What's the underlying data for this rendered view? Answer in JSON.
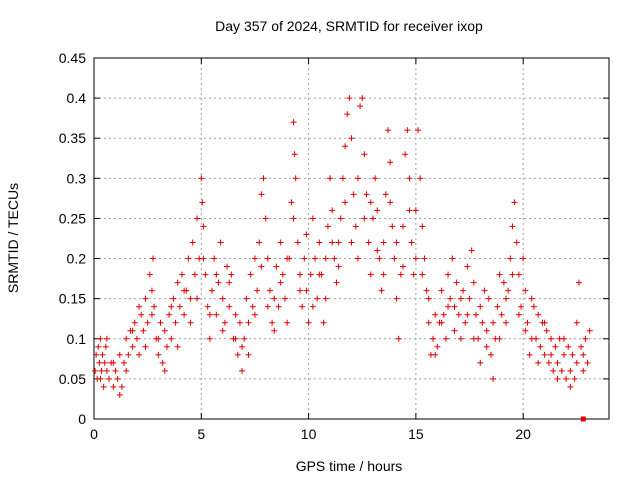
{
  "chart_data": {
    "type": "scatter",
    "title": "Day 357 of 2024, SRMTID for receiver ixop",
    "xlabel": "GPS time / hours",
    "ylabel": "SRMTID / TECUs",
    "xlim": [
      0,
      24
    ],
    "ylim": [
      0,
      0.45
    ],
    "x_ticks": [
      0,
      5,
      10,
      15,
      20
    ],
    "x_tick_labels": [
      "0",
      "5",
      "10",
      "15",
      "20"
    ],
    "y_ticks": [
      0,
      0.05,
      0.1,
      0.15,
      0.2,
      0.25,
      0.3,
      0.35,
      0.4,
      0.45
    ],
    "y_tick_labels": [
      "0",
      "0.05",
      "0.1",
      "0.15",
      "0.2",
      "0.25",
      "0.3",
      "0.35",
      "0.4",
      "0.45"
    ],
    "grid": true,
    "marker": "plus",
    "color": "#e00000",
    "series": [
      {
        "points": [
          [
            0.05,
            0.06
          ],
          [
            0.1,
            0.08
          ],
          [
            0.15,
            0.05
          ],
          [
            0.2,
            0.09
          ],
          [
            0.25,
            0.07
          ],
          [
            0.3,
            0.1
          ],
          [
            0.35,
            0.06
          ],
          [
            0.4,
            0.08
          ],
          [
            0.45,
            0.04
          ],
          [
            0.5,
            0.07
          ],
          [
            0.55,
            0.09
          ],
          [
            0.6,
            0.06
          ],
          [
            0.7,
            0.05
          ],
          [
            0.8,
            0.07
          ],
          [
            0.9,
            0.04
          ],
          [
            1.0,
            0.06
          ],
          [
            1.1,
            0.05
          ],
          [
            1.2,
            0.08
          ],
          [
            1.3,
            0.04
          ],
          [
            1.4,
            0.07
          ],
          [
            1.5,
            0.1
          ],
          [
            1.6,
            0.08
          ],
          [
            1.7,
            0.11
          ],
          [
            1.8,
            0.09
          ],
          [
            1.9,
            0.12
          ],
          [
            2.0,
            0.1
          ],
          [
            2.1,
            0.08
          ],
          [
            2.2,
            0.13
          ],
          [
            2.3,
            0.11
          ],
          [
            2.4,
            0.15
          ],
          [
            2.5,
            0.12
          ],
          [
            2.6,
            0.18
          ],
          [
            2.7,
            0.16
          ],
          [
            2.75,
            0.2
          ],
          [
            2.8,
            0.14
          ],
          [
            2.9,
            0.1
          ],
          [
            3.0,
            0.08
          ],
          [
            3.1,
            0.12
          ],
          [
            3.2,
            0.07
          ],
          [
            3.3,
            0.11
          ],
          [
            3.4,
            0.09
          ],
          [
            3.5,
            0.13
          ],
          [
            3.6,
            0.1
          ],
          [
            3.7,
            0.15
          ],
          [
            3.8,
            0.12
          ],
          [
            3.9,
            0.17
          ],
          [
            4.0,
            0.14
          ],
          [
            4.1,
            0.18
          ],
          [
            4.2,
            0.13
          ],
          [
            4.3,
            0.16
          ],
          [
            4.4,
            0.2
          ],
          [
            4.5,
            0.15
          ],
          [
            4.6,
            0.22
          ],
          [
            4.7,
            0.18
          ],
          [
            4.8,
            0.25
          ],
          [
            4.9,
            0.2
          ],
          [
            5.0,
            0.3
          ],
          [
            5.05,
            0.27
          ],
          [
            5.1,
            0.24
          ],
          [
            5.2,
            0.18
          ],
          [
            5.3,
            0.14
          ],
          [
            5.4,
            0.1
          ],
          [
            5.5,
            0.16
          ],
          [
            5.6,
            0.2
          ],
          [
            5.7,
            0.13
          ],
          [
            5.8,
            0.17
          ],
          [
            5.9,
            0.22
          ],
          [
            6.0,
            0.15
          ],
          [
            6.1,
            0.12
          ],
          [
            6.2,
            0.19
          ],
          [
            6.3,
            0.14
          ],
          [
            6.4,
            0.18
          ],
          [
            6.5,
            0.1
          ],
          [
            6.6,
            0.13
          ],
          [
            6.7,
            0.08
          ],
          [
            6.8,
            0.12
          ],
          [
            6.9,
            0.06
          ],
          [
            7.0,
            0.1
          ],
          [
            7.1,
            0.15
          ],
          [
            7.2,
            0.12
          ],
          [
            7.3,
            0.18
          ],
          [
            7.4,
            0.14
          ],
          [
            7.5,
            0.2
          ],
          [
            7.6,
            0.16
          ],
          [
            7.7,
            0.22
          ],
          [
            7.8,
            0.28
          ],
          [
            7.9,
            0.3
          ],
          [
            8.0,
            0.25
          ],
          [
            8.1,
            0.2
          ],
          [
            8.2,
            0.16
          ],
          [
            8.3,
            0.12
          ],
          [
            8.4,
            0.15
          ],
          [
            8.5,
            0.19
          ],
          [
            8.6,
            0.14
          ],
          [
            8.7,
            0.22
          ],
          [
            8.8,
            0.18
          ],
          [
            8.9,
            0.15
          ],
          [
            9.0,
            0.12
          ],
          [
            9.1,
            0.2
          ],
          [
            9.2,
            0.27
          ],
          [
            9.3,
            0.37
          ],
          [
            9.35,
            0.33
          ],
          [
            9.4,
            0.3
          ],
          [
            9.5,
            0.22
          ],
          [
            9.6,
            0.18
          ],
          [
            9.7,
            0.14
          ],
          [
            9.8,
            0.2
          ],
          [
            9.9,
            0.16
          ],
          [
            10.0,
            0.12
          ],
          [
            10.1,
            0.18
          ],
          [
            10.2,
            0.25
          ],
          [
            10.3,
            0.2
          ],
          [
            10.4,
            0.15
          ],
          [
            10.5,
            0.22
          ],
          [
            10.6,
            0.18
          ],
          [
            10.7,
            0.12
          ],
          [
            10.8,
            0.2
          ],
          [
            10.9,
            0.24
          ],
          [
            11.0,
            0.3
          ],
          [
            11.1,
            0.26
          ],
          [
            11.2,
            0.2
          ],
          [
            11.3,
            0.17
          ],
          [
            11.4,
            0.22
          ],
          [
            11.5,
            0.25
          ],
          [
            11.6,
            0.3
          ],
          [
            11.7,
            0.34
          ],
          [
            11.8,
            0.38
          ],
          [
            11.9,
            0.4
          ],
          [
            12.0,
            0.35
          ],
          [
            12.1,
            0.28
          ],
          [
            12.2,
            0.24
          ],
          [
            12.3,
            0.2
          ],
          [
            12.4,
            0.39
          ],
          [
            12.5,
            0.4
          ],
          [
            12.6,
            0.33
          ],
          [
            12.7,
            0.28
          ],
          [
            12.8,
            0.22
          ],
          [
            12.9,
            0.18
          ],
          [
            13.0,
            0.25
          ],
          [
            13.1,
            0.3
          ],
          [
            13.2,
            0.26
          ],
          [
            13.3,
            0.2
          ],
          [
            13.4,
            0.16
          ],
          [
            13.5,
            0.22
          ],
          [
            13.6,
            0.28
          ],
          [
            13.7,
            0.36
          ],
          [
            13.8,
            0.32
          ],
          [
            13.9,
            0.24
          ],
          [
            14.0,
            0.2
          ],
          [
            14.1,
            0.15
          ],
          [
            14.2,
            0.1
          ],
          [
            14.3,
            0.18
          ],
          [
            14.4,
            0.24
          ],
          [
            14.5,
            0.33
          ],
          [
            14.6,
            0.36
          ],
          [
            14.7,
            0.3
          ],
          [
            14.8,
            0.22
          ],
          [
            14.9,
            0.18
          ],
          [
            15.0,
            0.26
          ],
          [
            15.1,
            0.36
          ],
          [
            15.2,
            0.3
          ],
          [
            15.3,
            0.24
          ],
          [
            15.4,
            0.2
          ],
          [
            15.5,
            0.16
          ],
          [
            15.6,
            0.12
          ],
          [
            15.7,
            0.08
          ],
          [
            15.8,
            0.1
          ],
          [
            15.9,
            0.13
          ],
          [
            16.0,
            0.09
          ],
          [
            16.1,
            0.12
          ],
          [
            16.2,
            0.16
          ],
          [
            16.3,
            0.13
          ],
          [
            16.4,
            0.1
          ],
          [
            16.5,
            0.18
          ],
          [
            16.6,
            0.15
          ],
          [
            16.7,
            0.2
          ],
          [
            16.8,
            0.14
          ],
          [
            16.9,
            0.17
          ],
          [
            17.0,
            0.13
          ],
          [
            17.1,
            0.1
          ],
          [
            17.2,
            0.16
          ],
          [
            17.3,
            0.12
          ],
          [
            17.4,
            0.19
          ],
          [
            17.5,
            0.15
          ],
          [
            17.6,
            0.21
          ],
          [
            17.7,
            0.17
          ],
          [
            17.8,
            0.13
          ],
          [
            17.9,
            0.1
          ],
          [
            18.0,
            0.07
          ],
          [
            18.1,
            0.12
          ],
          [
            18.2,
            0.16
          ],
          [
            18.3,
            0.11
          ],
          [
            18.4,
            0.15
          ],
          [
            18.5,
            0.08
          ],
          [
            18.6,
            0.05
          ],
          [
            18.7,
            0.1
          ],
          [
            18.8,
            0.14
          ],
          [
            18.9,
            0.18
          ],
          [
            19.0,
            0.13
          ],
          [
            19.1,
            0.17
          ],
          [
            19.2,
            0.12
          ],
          [
            19.3,
            0.16
          ],
          [
            19.4,
            0.2
          ],
          [
            19.5,
            0.24
          ],
          [
            19.6,
            0.27
          ],
          [
            19.7,
            0.22
          ],
          [
            19.8,
            0.18
          ],
          [
            19.9,
            0.14
          ],
          [
            20.0,
            0.2
          ],
          [
            20.1,
            0.16
          ],
          [
            20.2,
            0.12
          ],
          [
            20.3,
            0.08
          ],
          [
            20.4,
            0.1
          ],
          [
            20.5,
            0.14
          ],
          [
            20.6,
            0.1
          ],
          [
            20.7,
            0.13
          ],
          [
            20.8,
            0.09
          ],
          [
            20.9,
            0.12
          ],
          [
            21.0,
            0.08
          ],
          [
            21.1,
            0.11
          ],
          [
            21.2,
            0.07
          ],
          [
            21.3,
            0.1
          ],
          [
            21.4,
            0.06
          ],
          [
            21.5,
            0.09
          ],
          [
            21.6,
            0.07
          ],
          [
            21.7,
            0.1
          ],
          [
            21.8,
            0.06
          ],
          [
            21.9,
            0.08
          ],
          [
            22.0,
            0.05
          ],
          [
            22.1,
            0.09
          ],
          [
            22.2,
            0.06
          ],
          [
            22.3,
            0.08
          ],
          [
            22.4,
            0.05
          ],
          [
            22.5,
            0.12
          ],
          [
            22.6,
            0.17
          ],
          [
            22.7,
            0.09
          ],
          [
            22.8,
            0.06
          ],
          [
            22.9,
            0.1
          ],
          [
            23.0,
            0.07
          ],
          [
            23.1,
            0.11
          ],
          [
            0.3,
            0.05
          ],
          [
            0.6,
            0.1
          ],
          [
            0.9,
            0.07
          ],
          [
            1.2,
            0.03
          ],
          [
            1.5,
            0.06
          ],
          [
            1.8,
            0.11
          ],
          [
            2.1,
            0.14
          ],
          [
            2.4,
            0.09
          ],
          [
            2.7,
            0.13
          ],
          [
            3.0,
            0.1
          ],
          [
            3.3,
            0.06
          ],
          [
            3.6,
            0.14
          ],
          [
            3.9,
            0.09
          ],
          [
            4.2,
            0.16
          ],
          [
            4.5,
            0.12
          ],
          [
            4.8,
            0.15
          ],
          [
            5.1,
            0.2
          ],
          [
            5.4,
            0.13
          ],
          [
            5.7,
            0.18
          ],
          [
            6.0,
            0.11
          ],
          [
            6.3,
            0.17
          ],
          [
            6.6,
            0.1
          ],
          [
            6.9,
            0.09
          ],
          [
            7.2,
            0.08
          ],
          [
            7.5,
            0.13
          ],
          [
            7.8,
            0.19
          ],
          [
            8.1,
            0.14
          ],
          [
            8.4,
            0.11
          ],
          [
            8.7,
            0.17
          ],
          [
            9.0,
            0.2
          ],
          [
            9.3,
            0.25
          ],
          [
            9.6,
            0.16
          ],
          [
            9.9,
            0.23
          ],
          [
            10.2,
            0.14
          ],
          [
            10.5,
            0.18
          ],
          [
            10.8,
            0.15
          ],
          [
            11.1,
            0.22
          ],
          [
            11.4,
            0.19
          ],
          [
            11.7,
            0.27
          ],
          [
            12.0,
            0.22
          ],
          [
            12.3,
            0.3
          ],
          [
            12.6,
            0.25
          ],
          [
            12.9,
            0.27
          ],
          [
            13.2,
            0.21
          ],
          [
            13.5,
            0.18
          ],
          [
            13.8,
            0.27
          ],
          [
            14.1,
            0.22
          ],
          [
            14.4,
            0.19
          ],
          [
            14.7,
            0.26
          ],
          [
            15.0,
            0.2
          ],
          [
            15.3,
            0.18
          ],
          [
            15.6,
            0.15
          ],
          [
            15.9,
            0.08
          ],
          [
            16.2,
            0.12
          ],
          [
            16.5,
            0.14
          ],
          [
            16.8,
            0.11
          ],
          [
            17.1,
            0.15
          ],
          [
            17.4,
            0.13
          ],
          [
            17.7,
            0.1
          ],
          [
            18.0,
            0.14
          ],
          [
            18.3,
            0.09
          ],
          [
            18.6,
            0.12
          ],
          [
            18.9,
            0.1
          ],
          [
            19.2,
            0.15
          ],
          [
            19.5,
            0.18
          ],
          [
            19.8,
            0.13
          ],
          [
            20.1,
            0.11
          ],
          [
            20.4,
            0.15
          ],
          [
            20.7,
            0.07
          ],
          [
            21.0,
            0.12
          ],
          [
            21.3,
            0.08
          ],
          [
            21.6,
            0.05
          ],
          [
            21.9,
            0.1
          ],
          [
            22.2,
            0.04
          ],
          [
            22.5,
            0.07
          ],
          [
            22.8,
            0.08
          ]
        ]
      }
    ],
    "extra_points": [
      [
        22.8,
        0.0
      ]
    ]
  }
}
